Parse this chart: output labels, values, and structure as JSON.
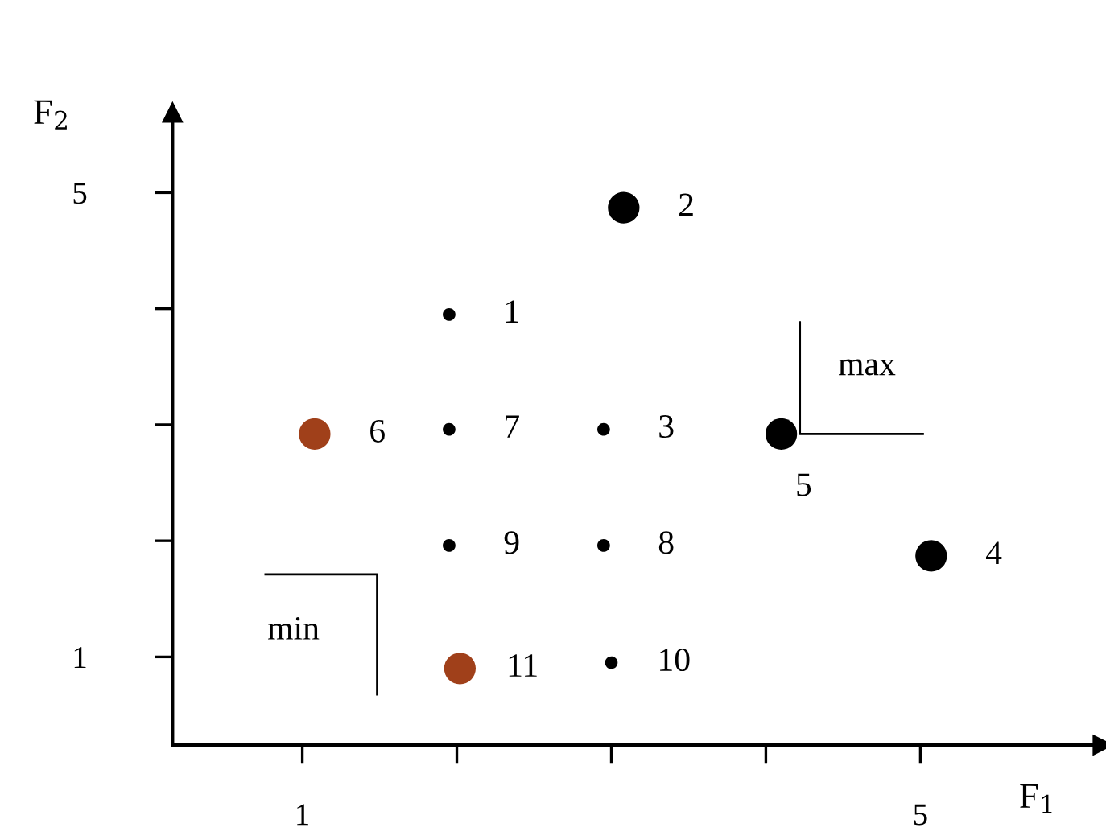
{
  "chart_data": {
    "type": "bubble",
    "xlabel": "F$_{1}$",
    "ylabel": "F$_{2}$",
    "x": [
      1.95,
      3.08,
      2.95,
      5.07,
      4.1,
      1.08,
      1.95,
      2.95,
      1.95,
      3.0,
      2.02
    ],
    "series": [
      {
        "values": [
          3.95,
          4.87,
          2.96,
          1.87,
          2.92,
          2.92,
          2.96,
          1.96,
          1.96,
          0.95,
          0.9
        ],
        "sizes": [
          0.16,
          1,
          0.16,
          1,
          1,
          1,
          0.16,
          0.16,
          0.16,
          0.16,
          1
        ],
        "colors": [
          "#000000",
          "#000000",
          "#000000",
          "#000000",
          "#000000",
          "#a0401a",
          "#000000",
          "#000000",
          "#000000",
          "#000000",
          "#a0401a"
        ]
      }
    ],
    "xlim": [
      0.16,
      6.18
    ],
    "ylim": [
      0.24,
      5.69
    ],
    "xticks": [
      1,
      {
        "value": 2,
        "label": null
      },
      {
        "value": 3,
        "label": null
      },
      {
        "value": 4,
        "label": null
      },
      5
    ],
    "yticks": [
      1,
      {
        "value": 2,
        "label": null
      },
      {
        "value": 3,
        "label": null
      },
      {
        "value": 4,
        "label": null
      },
      5
    ],
    "grid": false,
    "legend": false,
    "annotations": [
      {
        "text": "1",
        "x": 1.95,
        "y": 3.95
      },
      {
        "text": "2",
        "x": 3.08,
        "y": 4.87
      },
      {
        "text": "3",
        "x": 2.95,
        "y": 2.96
      },
      {
        "text": "4",
        "x": 5.07,
        "y": 1.87
      },
      {
        "text": "5",
        "x": 4.1,
        "y": 2.92
      },
      {
        "text": "6",
        "x": 1.08,
        "y": 2.92
      },
      {
        "text": "7",
        "x": 1.95,
        "y": 2.96
      },
      {
        "text": "8",
        "x": 2.95,
        "y": 1.96
      },
      {
        "text": "9",
        "x": 1.95,
        "y": 1.96
      },
      {
        "text": "10",
        "x": 3.0,
        "y": 0.95
      },
      {
        "text": "11",
        "x": 2.02,
        "y": 0.9
      },
      {
        "text": "max",
        "x": 4.22,
        "y": 2.92
      },
      "min"
    ]
  }
}
